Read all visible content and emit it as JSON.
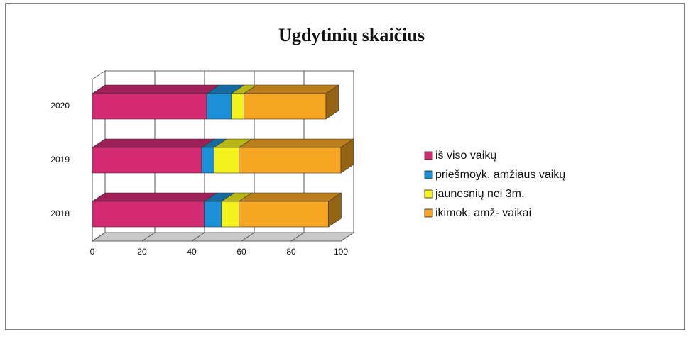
{
  "chart_data": {
    "type": "bar",
    "orientation": "horizontal",
    "stacked": true,
    "three_d": true,
    "title": "Ugdytinių skaičius",
    "categories": [
      "2018",
      "2019",
      "2020"
    ],
    "series": [
      {
        "name": "iš viso vaikų",
        "color": "#d42a72",
        "values": [
          45,
          44,
          46
        ]
      },
      {
        "name": "priešmoyk. amžiaus vaikų",
        "color": "#1b8fd8",
        "values": [
          7,
          5,
          10
        ]
      },
      {
        "name": "jaunesnių nei 3m.",
        "color": "#f4f21c",
        "values": [
          7,
          10,
          5
        ]
      },
      {
        "name": "ikimok. amž- vaikai",
        "color": "#f6a623",
        "values": [
          36,
          41,
          33
        ]
      }
    ],
    "xlim": [
      0,
      100
    ],
    "xticks": [
      0,
      20,
      40,
      60,
      80,
      100
    ],
    "grid": true,
    "legend": "right"
  }
}
